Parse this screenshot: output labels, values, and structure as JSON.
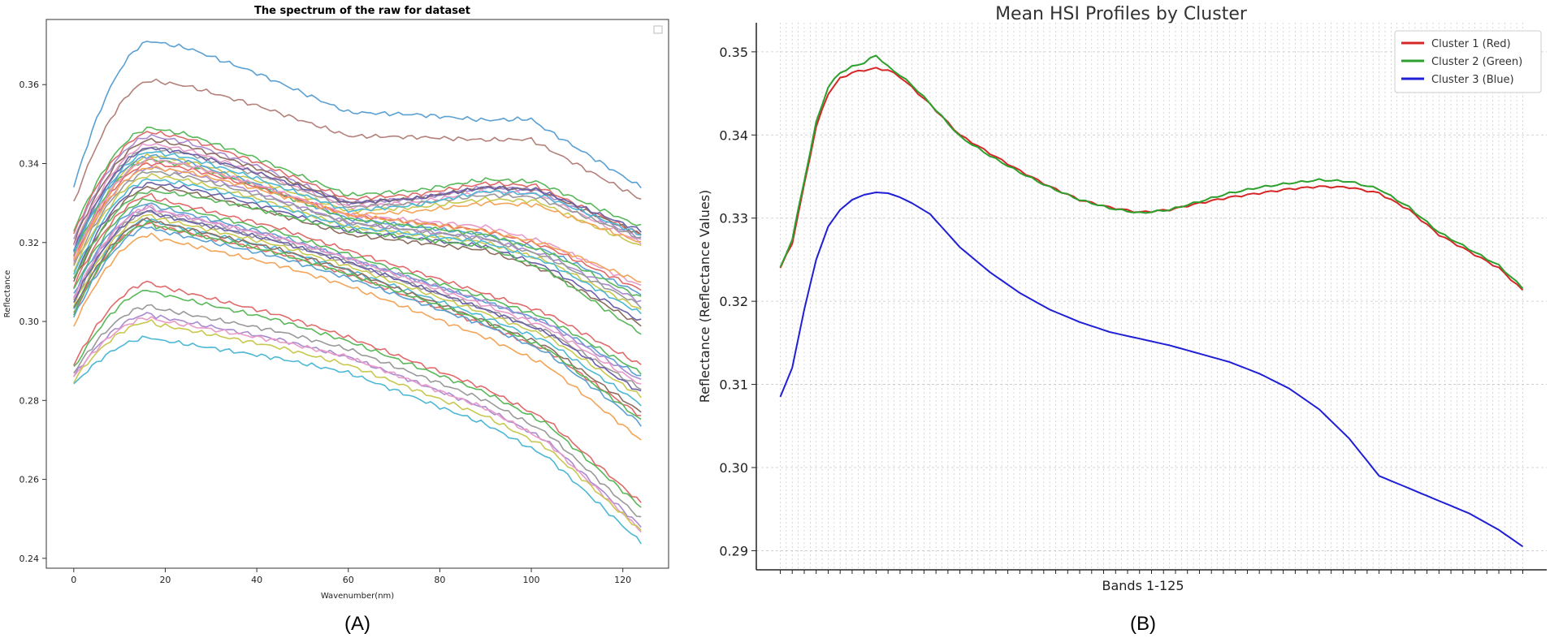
{
  "chart_data": [
    {
      "type": "line",
      "panel_label": "(A)",
      "title": "The spectrum of the raw for dataset",
      "xlabel": "Wavenumber(nm)",
      "ylabel": "Reflectance",
      "xlim": [
        -6,
        130
      ],
      "ylim": [
        0.2375,
        0.3765
      ],
      "xticks": [
        0,
        20,
        40,
        60,
        80,
        100,
        120
      ],
      "yticks": [
        0.24,
        0.26,
        0.28,
        0.3,
        0.32,
        0.34,
        0.36
      ],
      "ytick_labels": [
        "0.24",
        "0.26",
        "0.28",
        "0.30",
        "0.32",
        "0.34",
        "0.36"
      ],
      "legend": "empty box, top-right",
      "n_bands": 125,
      "series": [
        {
          "shape": "u",
          "start": 0.334,
          "peak": 0.371,
          "mid": 0.353,
          "p90": 0.351,
          "end": 0.334,
          "color": "#5aa0d2"
        },
        {
          "shape": "u",
          "start": 0.33,
          "peak": 0.361,
          "mid": 0.347,
          "p90": 0.346,
          "end": 0.331,
          "color": "#b3817a"
        },
        {
          "shape": "u",
          "start": 0.323,
          "peak": 0.349,
          "mid": 0.332,
          "p90": 0.336,
          "end": 0.324,
          "color": "#58b85a"
        },
        {
          "shape": "u",
          "start": 0.322,
          "peak": 0.348,
          "mid": 0.331,
          "p90": 0.335,
          "end": 0.322,
          "color": "#e06a6a"
        },
        {
          "shape": "u",
          "start": 0.321,
          "peak": 0.347,
          "mid": 0.33,
          "p90": 0.334,
          "end": 0.321,
          "color": "#a98bd0"
        },
        {
          "shape": "u",
          "start": 0.32,
          "peak": 0.346,
          "mid": 0.33,
          "p90": 0.334,
          "end": 0.322,
          "color": "#8c6d5f"
        },
        {
          "shape": "u",
          "start": 0.319,
          "peak": 0.345,
          "mid": 0.329,
          "p90": 0.333,
          "end": 0.32,
          "color": "#e89ac8"
        },
        {
          "shape": "u",
          "start": 0.318,
          "peak": 0.344,
          "mid": 0.329,
          "p90": 0.332,
          "end": 0.321,
          "color": "#999999"
        },
        {
          "shape": "u",
          "start": 0.316,
          "peak": 0.342,
          "mid": 0.328,
          "p90": 0.331,
          "end": 0.319,
          "color": "#c8c850"
        },
        {
          "shape": "u",
          "start": 0.317,
          "peak": 0.343,
          "mid": 0.328,
          "p90": 0.333,
          "end": 0.322,
          "color": "#4db8d4"
        },
        {
          "shape": "u",
          "start": 0.315,
          "peak": 0.341,
          "mid": 0.327,
          "p90": 0.33,
          "end": 0.32,
          "color": "#f4a458"
        },
        {
          "shape": "u",
          "start": 0.318,
          "peak": 0.344,
          "mid": 0.33,
          "p90": 0.334,
          "end": 0.323,
          "color": "#6b5fa8"
        },
        {
          "shape": "m",
          "start": 0.318,
          "peak": 0.342,
          "mid": 0.326,
          "p90": 0.322,
          "end": 0.307,
          "color": "#5aa0d2"
        },
        {
          "shape": "m",
          "start": 0.317,
          "peak": 0.341,
          "mid": 0.326,
          "p90": 0.322,
          "end": 0.306,
          "color": "#58b85a"
        },
        {
          "shape": "m",
          "start": 0.316,
          "peak": 0.34,
          "mid": 0.327,
          "p90": 0.323,
          "end": 0.308,
          "color": "#e06a6a"
        },
        {
          "shape": "m",
          "start": 0.315,
          "peak": 0.339,
          "mid": 0.325,
          "p90": 0.321,
          "end": 0.305,
          "color": "#a98bd0"
        },
        {
          "shape": "m",
          "start": 0.316,
          "peak": 0.341,
          "mid": 0.327,
          "p90": 0.324,
          "end": 0.309,
          "color": "#e89ac8"
        },
        {
          "shape": "m",
          "start": 0.314,
          "peak": 0.338,
          "mid": 0.325,
          "p90": 0.321,
          "end": 0.304,
          "color": "#999999"
        },
        {
          "shape": "m",
          "start": 0.313,
          "peak": 0.337,
          "mid": 0.324,
          "p90": 0.32,
          "end": 0.303,
          "color": "#c8c850"
        },
        {
          "shape": "m",
          "start": 0.312,
          "peak": 0.336,
          "mid": 0.324,
          "p90": 0.32,
          "end": 0.302,
          "color": "#4db8d4"
        },
        {
          "shape": "m",
          "start": 0.315,
          "peak": 0.339,
          "mid": 0.327,
          "p90": 0.323,
          "end": 0.31,
          "color": "#f4a458"
        },
        {
          "shape": "m",
          "start": 0.311,
          "peak": 0.335,
          "mid": 0.323,
          "p90": 0.319,
          "end": 0.3,
          "color": "#6b5fa8"
        },
        {
          "shape": "m",
          "start": 0.31,
          "peak": 0.334,
          "mid": 0.322,
          "p90": 0.318,
          "end": 0.299,
          "color": "#8c6d5f"
        },
        {
          "shape": "m",
          "start": 0.311,
          "peak": 0.333,
          "mid": 0.323,
          "p90": 0.319,
          "end": 0.297,
          "color": "#58b85a"
        },
        {
          "shape": "d",
          "start": 0.309,
          "peak": 0.332,
          "mid": 0.318,
          "p90": 0.307,
          "end": 0.289,
          "color": "#e06a6a"
        },
        {
          "shape": "d",
          "start": 0.308,
          "peak": 0.331,
          "mid": 0.317,
          "p90": 0.306,
          "end": 0.287,
          "color": "#58b85a"
        },
        {
          "shape": "d",
          "start": 0.307,
          "peak": 0.33,
          "mid": 0.316,
          "p90": 0.305,
          "end": 0.286,
          "color": "#5aa0d2"
        },
        {
          "shape": "d",
          "start": 0.306,
          "peak": 0.329,
          "mid": 0.316,
          "p90": 0.305,
          "end": 0.285,
          "color": "#a98bd0"
        },
        {
          "shape": "d",
          "start": 0.305,
          "peak": 0.328,
          "mid": 0.315,
          "p90": 0.303,
          "end": 0.283,
          "color": "#999999"
        },
        {
          "shape": "d",
          "start": 0.306,
          "peak": 0.329,
          "mid": 0.316,
          "p90": 0.304,
          "end": 0.284,
          "color": "#e89ac8"
        },
        {
          "shape": "d",
          "start": 0.304,
          "peak": 0.327,
          "mid": 0.314,
          "p90": 0.302,
          "end": 0.281,
          "color": "#c8c850"
        },
        {
          "shape": "d",
          "start": 0.303,
          "peak": 0.326,
          "mid": 0.313,
          "p90": 0.301,
          "end": 0.279,
          "color": "#4db8d4"
        },
        {
          "shape": "d",
          "start": 0.305,
          "peak": 0.328,
          "mid": 0.315,
          "p90": 0.303,
          "end": 0.282,
          "color": "#6b5fa8"
        },
        {
          "shape": "d",
          "start": 0.303,
          "peak": 0.326,
          "mid": 0.313,
          "p90": 0.3,
          "end": 0.277,
          "color": "#8c6d5f"
        },
        {
          "shape": "d",
          "start": 0.302,
          "peak": 0.325,
          "mid": 0.312,
          "p90": 0.299,
          "end": 0.276,
          "color": "#e06a6a"
        },
        {
          "shape": "d",
          "start": 0.302,
          "peak": 0.325,
          "mid": 0.312,
          "p90": 0.3,
          "end": 0.275,
          "color": "#58b85a"
        },
        {
          "shape": "d",
          "start": 0.301,
          "peak": 0.324,
          "mid": 0.311,
          "p90": 0.299,
          "end": 0.274,
          "color": "#5aa0d2"
        },
        {
          "shape": "d",
          "start": 0.299,
          "peak": 0.322,
          "mid": 0.309,
          "p90": 0.296,
          "end": 0.27,
          "color": "#f4a458"
        },
        {
          "shape": "d",
          "start": 0.289,
          "peak": 0.31,
          "mid": 0.296,
          "p90": 0.283,
          "end": 0.254,
          "color": "#e06a6a"
        },
        {
          "shape": "d",
          "start": 0.288,
          "peak": 0.308,
          "mid": 0.295,
          "p90": 0.282,
          "end": 0.253,
          "color": "#58b85a"
        },
        {
          "shape": "d",
          "start": 0.287,
          "peak": 0.304,
          "mid": 0.293,
          "p90": 0.28,
          "end": 0.25,
          "color": "#999999"
        },
        {
          "shape": "d",
          "start": 0.286,
          "peak": 0.302,
          "mid": 0.291,
          "p90": 0.278,
          "end": 0.248,
          "color": "#a98bd0"
        },
        {
          "shape": "d",
          "start": 0.286,
          "peak": 0.301,
          "mid": 0.291,
          "p90": 0.278,
          "end": 0.247,
          "color": "#e89ac8"
        },
        {
          "shape": "d",
          "start": 0.285,
          "peak": 0.3,
          "mid": 0.289,
          "p90": 0.276,
          "end": 0.247,
          "color": "#c8c850"
        },
        {
          "shape": "d",
          "start": 0.284,
          "peak": 0.296,
          "mid": 0.287,
          "p90": 0.274,
          "end": 0.244,
          "color": "#4db8d4"
        }
      ]
    },
    {
      "type": "line",
      "panel_label": "(B)",
      "title": "Mean HSI Profiles by Cluster",
      "xlabel": "Bands 1-125",
      "ylabel": "Reflectance (Reflectance Values)",
      "xlim": [
        -4,
        128
      ],
      "ylim": [
        0.2877,
        0.3535
      ],
      "yticks": [
        0.29,
        0.3,
        0.31,
        0.32,
        0.33,
        0.34,
        0.35
      ],
      "ytick_labels": [
        "0.29",
        "0.30",
        "0.31",
        "0.32",
        "0.33",
        "0.34",
        "0.35"
      ],
      "n_bands": 125,
      "grid": true,
      "legend_position": "top-right",
      "series": [
        {
          "name": "Cluster 1 (Red)",
          "color": "#d62728",
          "knots_x": [
            0,
            2,
            4,
            6,
            8,
            10,
            12,
            14,
            16,
            18,
            20,
            22,
            25,
            30,
            35,
            40,
            45,
            50,
            55,
            60,
            65,
            70,
            75,
            80,
            85,
            90,
            95,
            100,
            105,
            110,
            115,
            120,
            124
          ],
          "knots_y": [
            0.324,
            0.327,
            0.334,
            0.341,
            0.345,
            0.3468,
            0.3475,
            0.3478,
            0.348,
            0.3478,
            0.347,
            0.3457,
            0.3437,
            0.34,
            0.3378,
            0.3357,
            0.3338,
            0.3322,
            0.3313,
            0.3307,
            0.331,
            0.3318,
            0.3325,
            0.333,
            0.3335,
            0.3338,
            0.3337,
            0.333,
            0.331,
            0.328,
            0.326,
            0.324,
            0.3213
          ]
        },
        {
          "name": "Cluster 2 (Green)",
          "color": "#2ca02c",
          "knots_x": [
            0,
            2,
            4,
            6,
            8,
            10,
            12,
            14,
            16,
            18,
            20,
            22,
            25,
            30,
            35,
            40,
            45,
            50,
            55,
            60,
            65,
            70,
            75,
            80,
            85,
            90,
            95,
            100,
            105,
            110,
            115,
            120,
            124
          ],
          "knots_y": [
            0.324,
            0.3275,
            0.3345,
            0.3415,
            0.3458,
            0.3475,
            0.3482,
            0.3487,
            0.3496,
            0.3482,
            0.3472,
            0.346,
            0.3438,
            0.3398,
            0.3375,
            0.3355,
            0.3337,
            0.3322,
            0.3312,
            0.3306,
            0.331,
            0.332,
            0.333,
            0.3337,
            0.3342,
            0.3346,
            0.3344,
            0.3335,
            0.3313,
            0.3283,
            0.3263,
            0.3243,
            0.3216
          ]
        },
        {
          "name": "Cluster 3 (Blue)",
          "color": "#1f1fd6",
          "knots_x": [
            0,
            2,
            4,
            6,
            8,
            10,
            12,
            14,
            16,
            18,
            20,
            22,
            25,
            30,
            35,
            40,
            45,
            50,
            55,
            60,
            65,
            70,
            75,
            80,
            85,
            90,
            95,
            100,
            105,
            110,
            115,
            120,
            124
          ],
          "knots_y": [
            0.3085,
            0.312,
            0.319,
            0.325,
            0.329,
            0.331,
            0.3322,
            0.3328,
            0.3331,
            0.333,
            0.3325,
            0.3318,
            0.3305,
            0.3265,
            0.3235,
            0.321,
            0.319,
            0.3175,
            0.3163,
            0.3155,
            0.3147,
            0.3137,
            0.3127,
            0.3113,
            0.3095,
            0.307,
            0.3035,
            0.299,
            0.2975,
            0.296,
            0.2945,
            0.2925,
            0.2905
          ]
        }
      ]
    }
  ]
}
